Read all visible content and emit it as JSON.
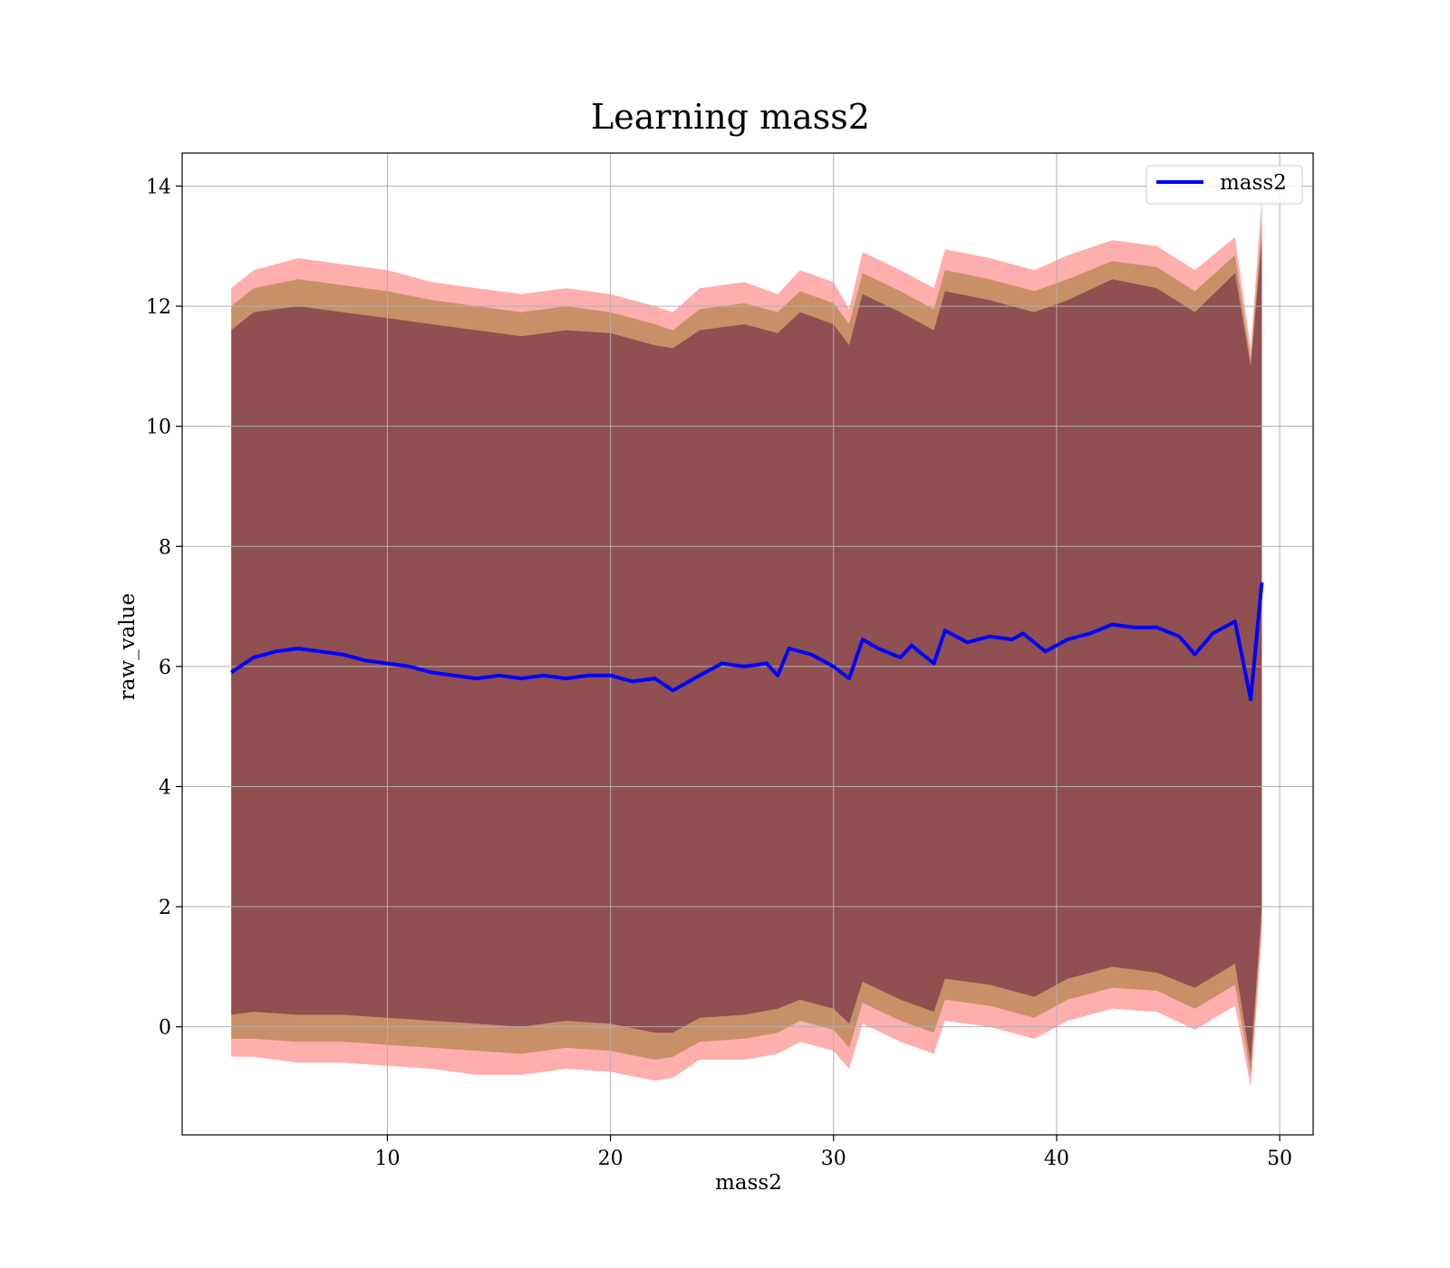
{
  "chart_data": {
    "type": "line",
    "title": "Learning mass2",
    "xlabel": "mass2",
    "ylabel": "raw_value",
    "xlim": [
      0.8,
      51.5
    ],
    "ylim": [
      -1.8,
      14.55
    ],
    "xticks": [
      10,
      20,
      30,
      40,
      50
    ],
    "yticks": [
      0,
      2,
      4,
      6,
      8,
      10,
      12,
      14
    ],
    "grid": true,
    "legend_position": "top-right",
    "colors": {
      "line": "#0000ff",
      "band_outer": "#ff6b6b",
      "band_middle": "#b5864f",
      "band_inner": "#7d3a4a"
    },
    "series": [
      {
        "name": "mass2",
        "x": [
          3.0,
          4.0,
          5.0,
          6.0,
          7.0,
          8.0,
          9.0,
          10.0,
          11.0,
          12.0,
          13.0,
          14.0,
          15.0,
          16.0,
          17.0,
          18.0,
          19.0,
          20.0,
          21.0,
          22.0,
          22.8,
          24.0,
          25.0,
          26.0,
          27.0,
          27.5,
          28.0,
          29.0,
          30.0,
          30.7,
          31.3,
          32.0,
          33.0,
          33.5,
          34.5,
          35.0,
          36.0,
          37.0,
          38.0,
          38.5,
          39.5,
          40.5,
          41.5,
          42.5,
          43.5,
          44.5,
          45.5,
          46.2,
          47.0,
          48.0,
          48.7,
          49.2
        ],
        "y": [
          5.9,
          6.15,
          6.25,
          6.3,
          6.25,
          6.2,
          6.1,
          6.05,
          6.0,
          5.9,
          5.85,
          5.8,
          5.85,
          5.8,
          5.85,
          5.8,
          5.85,
          5.85,
          5.75,
          5.8,
          5.6,
          5.85,
          6.05,
          6.0,
          6.05,
          5.85,
          6.3,
          6.2,
          6.0,
          5.8,
          6.45,
          6.3,
          6.15,
          6.35,
          6.05,
          6.6,
          6.4,
          6.5,
          6.45,
          6.55,
          6.25,
          6.45,
          6.55,
          6.7,
          6.65,
          6.65,
          6.5,
          6.2,
          6.55,
          6.75,
          5.45,
          7.4
        ]
      }
    ],
    "bands": [
      {
        "name": "outer",
        "x": [
          3.0,
          4.0,
          6.0,
          8.0,
          10.0,
          12.0,
          14.0,
          16.0,
          18.0,
          20.0,
          22.0,
          22.8,
          24.0,
          26.0,
          27.5,
          28.5,
          30.0,
          30.7,
          31.3,
          33.0,
          34.5,
          35.0,
          37.0,
          39.0,
          40.5,
          42.5,
          44.5,
          46.2,
          48.0,
          48.7,
          49.2
        ],
        "upper": [
          12.3,
          12.6,
          12.8,
          12.7,
          12.6,
          12.4,
          12.3,
          12.2,
          12.3,
          12.2,
          12.0,
          11.9,
          12.3,
          12.4,
          12.2,
          12.6,
          12.4,
          11.95,
          12.9,
          12.6,
          12.3,
          12.95,
          12.8,
          12.6,
          12.85,
          13.1,
          13.0,
          12.6,
          13.15,
          11.3,
          13.8
        ],
        "lower": [
          -0.5,
          -0.5,
          -0.6,
          -0.6,
          -0.65,
          -0.7,
          -0.8,
          -0.8,
          -0.7,
          -0.75,
          -0.9,
          -0.85,
          -0.55,
          -0.55,
          -0.45,
          -0.25,
          -0.4,
          -0.7,
          0.05,
          -0.25,
          -0.45,
          0.1,
          0.0,
          -0.2,
          0.1,
          0.3,
          0.25,
          -0.05,
          0.35,
          -1.0,
          1.5
        ]
      },
      {
        "name": "middle",
        "x": [
          3.0,
          4.0,
          6.0,
          8.0,
          10.0,
          12.0,
          14.0,
          16.0,
          18.0,
          20.0,
          22.0,
          22.8,
          24.0,
          26.0,
          27.5,
          28.5,
          30.0,
          30.7,
          31.3,
          33.0,
          34.5,
          35.0,
          37.0,
          39.0,
          40.5,
          42.5,
          44.5,
          46.2,
          48.0,
          48.7,
          49.2
        ],
        "upper": [
          12.0,
          12.3,
          12.45,
          12.35,
          12.25,
          12.1,
          12.0,
          11.9,
          12.0,
          11.9,
          11.7,
          11.6,
          11.95,
          12.05,
          11.9,
          12.25,
          12.05,
          11.7,
          12.55,
          12.25,
          11.95,
          12.6,
          12.45,
          12.25,
          12.45,
          12.75,
          12.65,
          12.25,
          12.85,
          11.1,
          13.4
        ],
        "lower": [
          -0.2,
          -0.2,
          -0.25,
          -0.25,
          -0.3,
          -0.35,
          -0.4,
          -0.45,
          -0.35,
          -0.4,
          -0.55,
          -0.5,
          -0.25,
          -0.2,
          -0.1,
          0.1,
          -0.05,
          -0.35,
          0.4,
          0.1,
          -0.1,
          0.45,
          0.35,
          0.15,
          0.45,
          0.65,
          0.6,
          0.3,
          0.7,
          -0.8,
          1.8
        ]
      },
      {
        "name": "inner",
        "x": [
          3.0,
          4.0,
          6.0,
          8.0,
          10.0,
          12.0,
          14.0,
          16.0,
          18.0,
          20.0,
          22.0,
          22.8,
          24.0,
          26.0,
          27.5,
          28.5,
          30.0,
          30.7,
          31.3,
          33.0,
          34.5,
          35.0,
          37.0,
          39.0,
          40.5,
          42.5,
          44.5,
          46.2,
          48.0,
          48.7,
          49.2
        ],
        "upper": [
          11.6,
          11.9,
          12.0,
          11.9,
          11.8,
          11.7,
          11.6,
          11.5,
          11.6,
          11.55,
          11.35,
          11.3,
          11.6,
          11.7,
          11.55,
          11.9,
          11.7,
          11.35,
          12.2,
          11.9,
          11.6,
          12.25,
          12.1,
          11.9,
          12.1,
          12.45,
          12.3,
          11.9,
          12.55,
          11.0,
          13.1
        ],
        "lower": [
          0.2,
          0.25,
          0.2,
          0.2,
          0.15,
          0.1,
          0.05,
          0.0,
          0.1,
          0.05,
          -0.1,
          -0.1,
          0.15,
          0.2,
          0.3,
          0.45,
          0.3,
          0.05,
          0.75,
          0.45,
          0.25,
          0.8,
          0.7,
          0.5,
          0.8,
          1.0,
          0.9,
          0.65,
          1.05,
          -0.6,
          2.0
        ]
      }
    ]
  }
}
